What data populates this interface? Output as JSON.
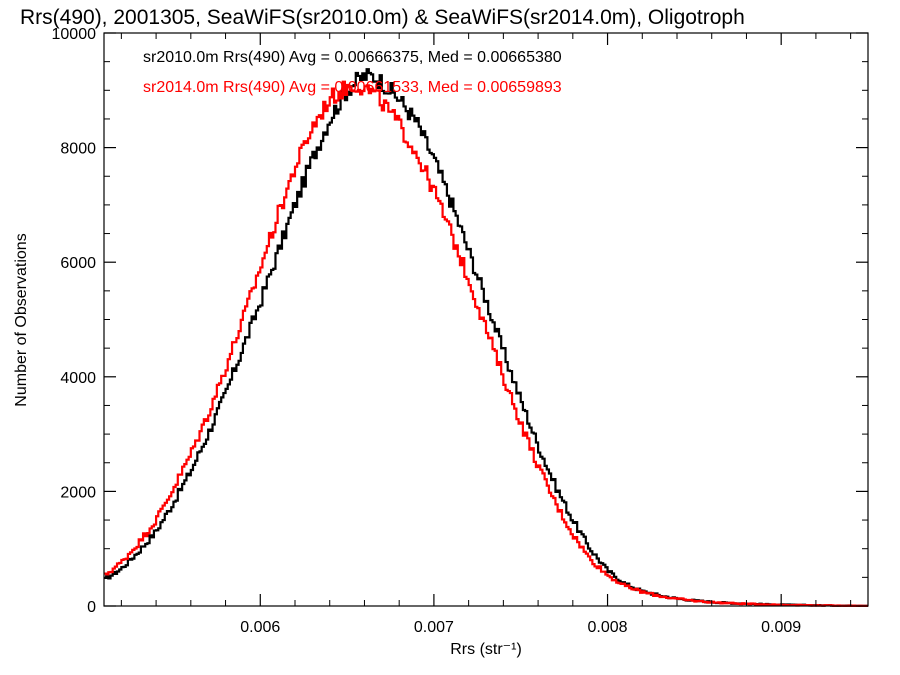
{
  "chart_data": {
    "type": "line",
    "title": "Rrs(490), 2001305, SeaWiFS(sr2010.0m) & SeaWiFS(sr2014.0m), Oligotroph",
    "xlabel": "Rrs (str⁻¹)",
    "ylabel": "Number of Observations",
    "xlim": [
      0.0051,
      0.0095
    ],
    "ylim": [
      0,
      10000
    ],
    "x_ticks": [
      0.006,
      0.007,
      0.008,
      0.009
    ],
    "x_tick_labels": [
      "0.006",
      "0.007",
      "0.008",
      "0.009"
    ],
    "y_ticks": [
      0,
      2000,
      4000,
      6000,
      8000,
      10000
    ],
    "y_tick_labels": [
      "0",
      "2000",
      "4000",
      "6000",
      "8000",
      "10000"
    ],
    "grid": false,
    "legend_position": "top-left",
    "series": [
      {
        "name": "sr2010.0m Rrs(490) Avg = 0.00666375, Med = 0.00665380",
        "color": "#000000",
        "x": [
          0.0051,
          0.0052,
          0.0053,
          0.0054,
          0.0055,
          0.0056,
          0.0057,
          0.0058,
          0.0059,
          0.006,
          0.0061,
          0.0062,
          0.0063,
          0.0064,
          0.0065,
          0.00655,
          0.0066,
          0.00665,
          0.0067,
          0.0068,
          0.0069,
          0.007,
          0.0071,
          0.0072,
          0.0073,
          0.0074,
          0.0075,
          0.0076,
          0.0077,
          0.0078,
          0.0079,
          0.008,
          0.0081,
          0.0082,
          0.0083,
          0.0084,
          0.0085,
          0.0086,
          0.0087,
          0.0088,
          0.0089,
          0.009,
          0.0091,
          0.0092,
          0.0093,
          0.0094,
          0.0095
        ],
        "y": [
          450,
          650,
          950,
          1300,
          1800,
          2350,
          3000,
          3700,
          4500,
          5300,
          6150,
          7000,
          7800,
          8500,
          9000,
          9150,
          9250,
          9250,
          9150,
          8850,
          8450,
          7800,
          7050,
          6200,
          5350,
          4450,
          3600,
          2800,
          2100,
          1500,
          1000,
          620,
          390,
          260,
          185,
          130,
          95,
          70,
          52,
          40,
          30,
          22,
          17,
          12,
          9,
          6,
          4
        ]
      },
      {
        "name": "sr2014.0m Rrs(490) Avg = 0.00661533, Med = 0.00659893",
        "color": "#ff0000",
        "x": [
          0.0051,
          0.0052,
          0.0053,
          0.0054,
          0.0055,
          0.0056,
          0.0057,
          0.0058,
          0.0059,
          0.006,
          0.0061,
          0.0062,
          0.0063,
          0.0064,
          0.0065,
          0.00655,
          0.0066,
          0.00665,
          0.0067,
          0.0068,
          0.0069,
          0.007,
          0.0071,
          0.0072,
          0.0073,
          0.0074,
          0.0075,
          0.0076,
          0.0077,
          0.0078,
          0.0079,
          0.008,
          0.0081,
          0.0082,
          0.0083,
          0.0084,
          0.0085,
          0.0086,
          0.0087,
          0.0088,
          0.0089,
          0.009,
          0.0091,
          0.0092,
          0.0093,
          0.0094,
          0.0095
        ],
        "y": [
          520,
          760,
          1100,
          1500,
          2050,
          2650,
          3350,
          4150,
          5000,
          5900,
          6800,
          7650,
          8350,
          8850,
          9050,
          9100,
          9050,
          8950,
          8800,
          8400,
          7900,
          7250,
          6500,
          5700,
          4850,
          4000,
          3200,
          2450,
          1800,
          1250,
          820,
          540,
          350,
          245,
          175,
          125,
          90,
          66,
          50,
          38,
          28,
          20,
          15,
          11,
          8,
          5,
          3
        ]
      }
    ]
  }
}
